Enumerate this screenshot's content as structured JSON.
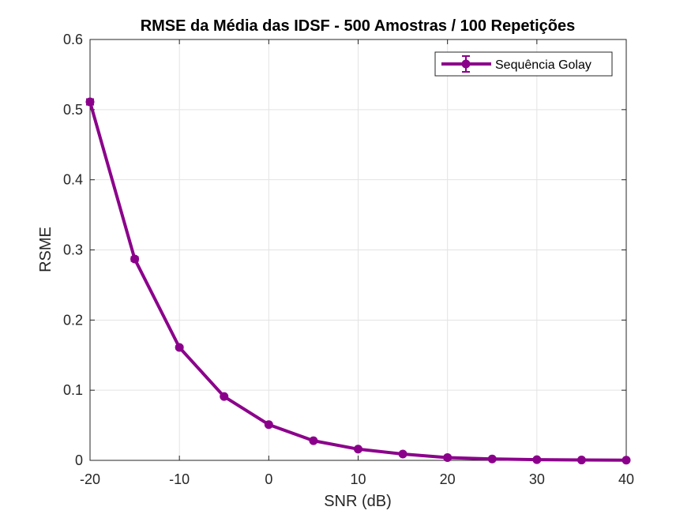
{
  "chart_data": {
    "type": "line",
    "title": "RMSE da Média das IDSF - 500 Amostras / 100 Repetições",
    "xlabel": "SNR (dB)",
    "ylabel": "RSME",
    "xlim": [
      -20,
      40
    ],
    "ylim": [
      0,
      0.6
    ],
    "xticks": [
      -20,
      -10,
      0,
      10,
      20,
      30,
      40
    ],
    "yticks": [
      0,
      0.1,
      0.2,
      0.3,
      0.4,
      0.5,
      0.6
    ],
    "xtick_labels": [
      "-20",
      "-10",
      "0",
      "10",
      "20",
      "30",
      "40"
    ],
    "ytick_labels": [
      "0",
      "0.1",
      "0.2",
      "0.3",
      "0.4",
      "0.5",
      "0.6"
    ],
    "grid": true,
    "legend_placement": "top-right",
    "x": [
      -20,
      -15,
      -10,
      -5,
      0,
      5,
      10,
      15,
      20,
      25,
      30,
      35,
      40
    ],
    "series": [
      {
        "name": "Sequência Golay",
        "color": "#8b008b",
        "values": [
          0.511,
          0.287,
          0.161,
          0.091,
          0.051,
          0.028,
          0.016,
          0.009,
          0.004,
          0.002,
          0.001,
          0.0005,
          0.0003
        ],
        "error": [
          0.004,
          0.003,
          0.002,
          0.001,
          0.001,
          0.0005,
          0.0003,
          0.0002,
          0.0001,
          0.0001,
          0.0,
          0.0,
          0.0
        ],
        "marker": "circle",
        "error_bars": true
      }
    ]
  }
}
